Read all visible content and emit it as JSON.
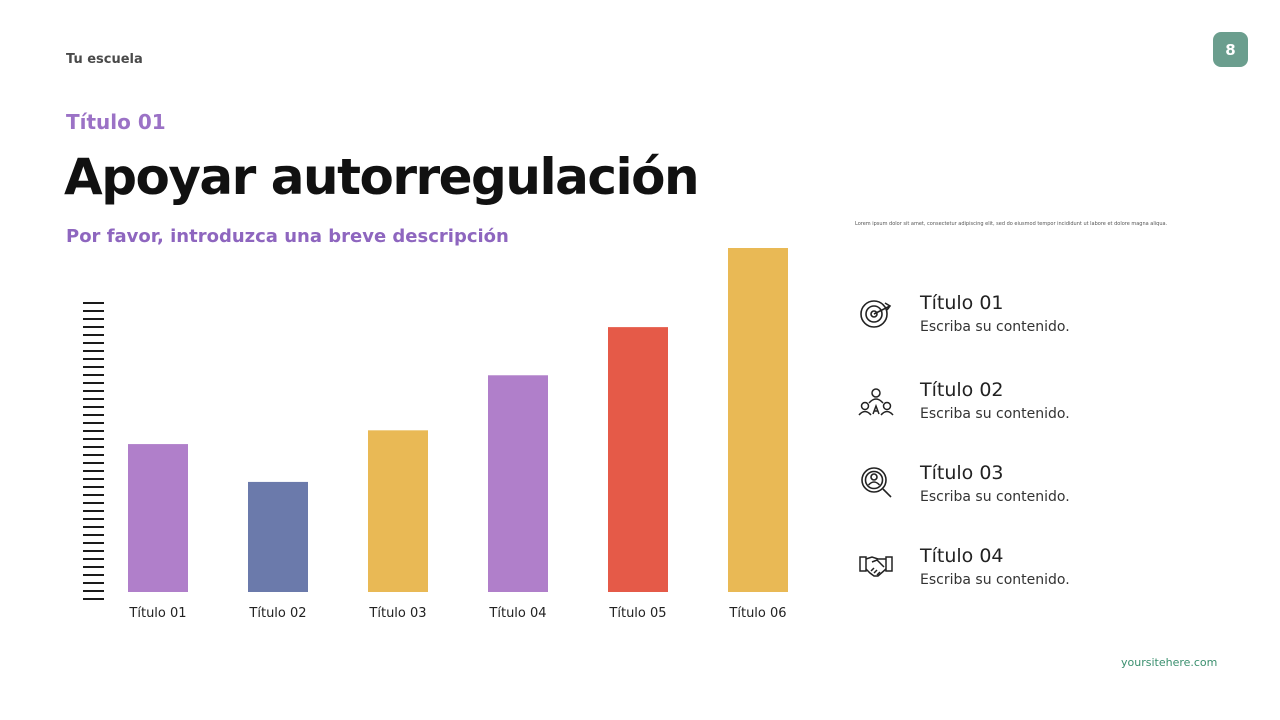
{
  "header": {
    "school": "Tu escuela",
    "page_number": "8"
  },
  "slide": {
    "kicker": "Título 01",
    "title": "Apoyar autorregulación",
    "subtitle": "Por favor, introduzca una breve descripción",
    "lorem": "Lorem ipsum dolor sit amet, consectetur adipiscing elit, sed do eiusmod tempor incididunt ut labore et dolore magna aliqua."
  },
  "chart_data": {
    "type": "bar",
    "categories": [
      "Título 01",
      "Título 02",
      "Título 03",
      "Título 04",
      "Título 05",
      "Título 06"
    ],
    "values": [
      43,
      32,
      47,
      63,
      77,
      100
    ],
    "colors": [
      "#b07fca",
      "#6b7aab",
      "#e9b955",
      "#b07fca",
      "#e55a48",
      "#e9b955"
    ],
    "ylim": [
      0,
      100
    ],
    "xlabel": "",
    "ylabel": "",
    "grid": false,
    "legend": "none"
  },
  "items": [
    {
      "icon": "target-icon",
      "title": "Título 01",
      "text": "Escriba su contenido."
    },
    {
      "icon": "team-icon",
      "title": "Título 02",
      "text": "Escriba su contenido."
    },
    {
      "icon": "search-person-icon",
      "title": "Título 03",
      "text": "Escriba su contenido."
    },
    {
      "icon": "handshake-icon",
      "title": "Título 04",
      "text": "Escriba su contenido."
    }
  ],
  "footer": {
    "site": "yoursitehere.com"
  }
}
